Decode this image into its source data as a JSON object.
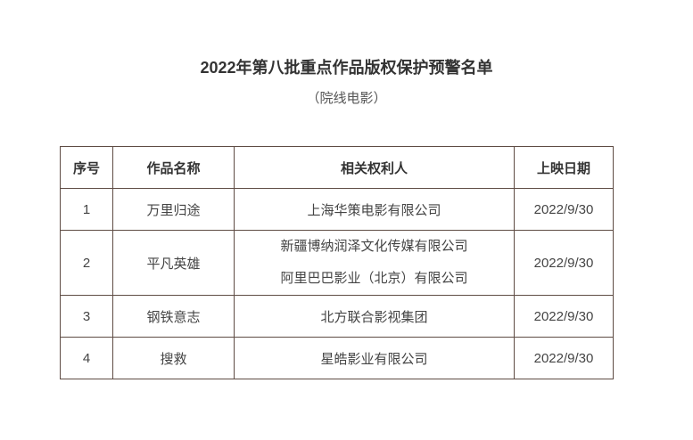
{
  "title": "2022年第八批重点作品版权保护预警名单",
  "subtitle": "（院线电影）",
  "table": {
    "headers": [
      "序号",
      "作品名称",
      "相关权利人",
      "上映日期"
    ],
    "rows": [
      {
        "no": "1",
        "name": "万里归途",
        "owners": [
          "上海华策电影有限公司"
        ],
        "date": "2022/9/30"
      },
      {
        "no": "2",
        "name": "平凡英雄",
        "owners": [
          "新疆博纳润泽文化传媒有限公司",
          "阿里巴巴影业（北京）有限公司"
        ],
        "date": "2022/9/30"
      },
      {
        "no": "3",
        "name": "钢铁意志",
        "owners": [
          "北方联合影视集团"
        ],
        "date": "2022/9/30"
      },
      {
        "no": "4",
        "name": "搜救",
        "owners": [
          "星皓影业有限公司"
        ],
        "date": "2022/9/30"
      }
    ]
  }
}
